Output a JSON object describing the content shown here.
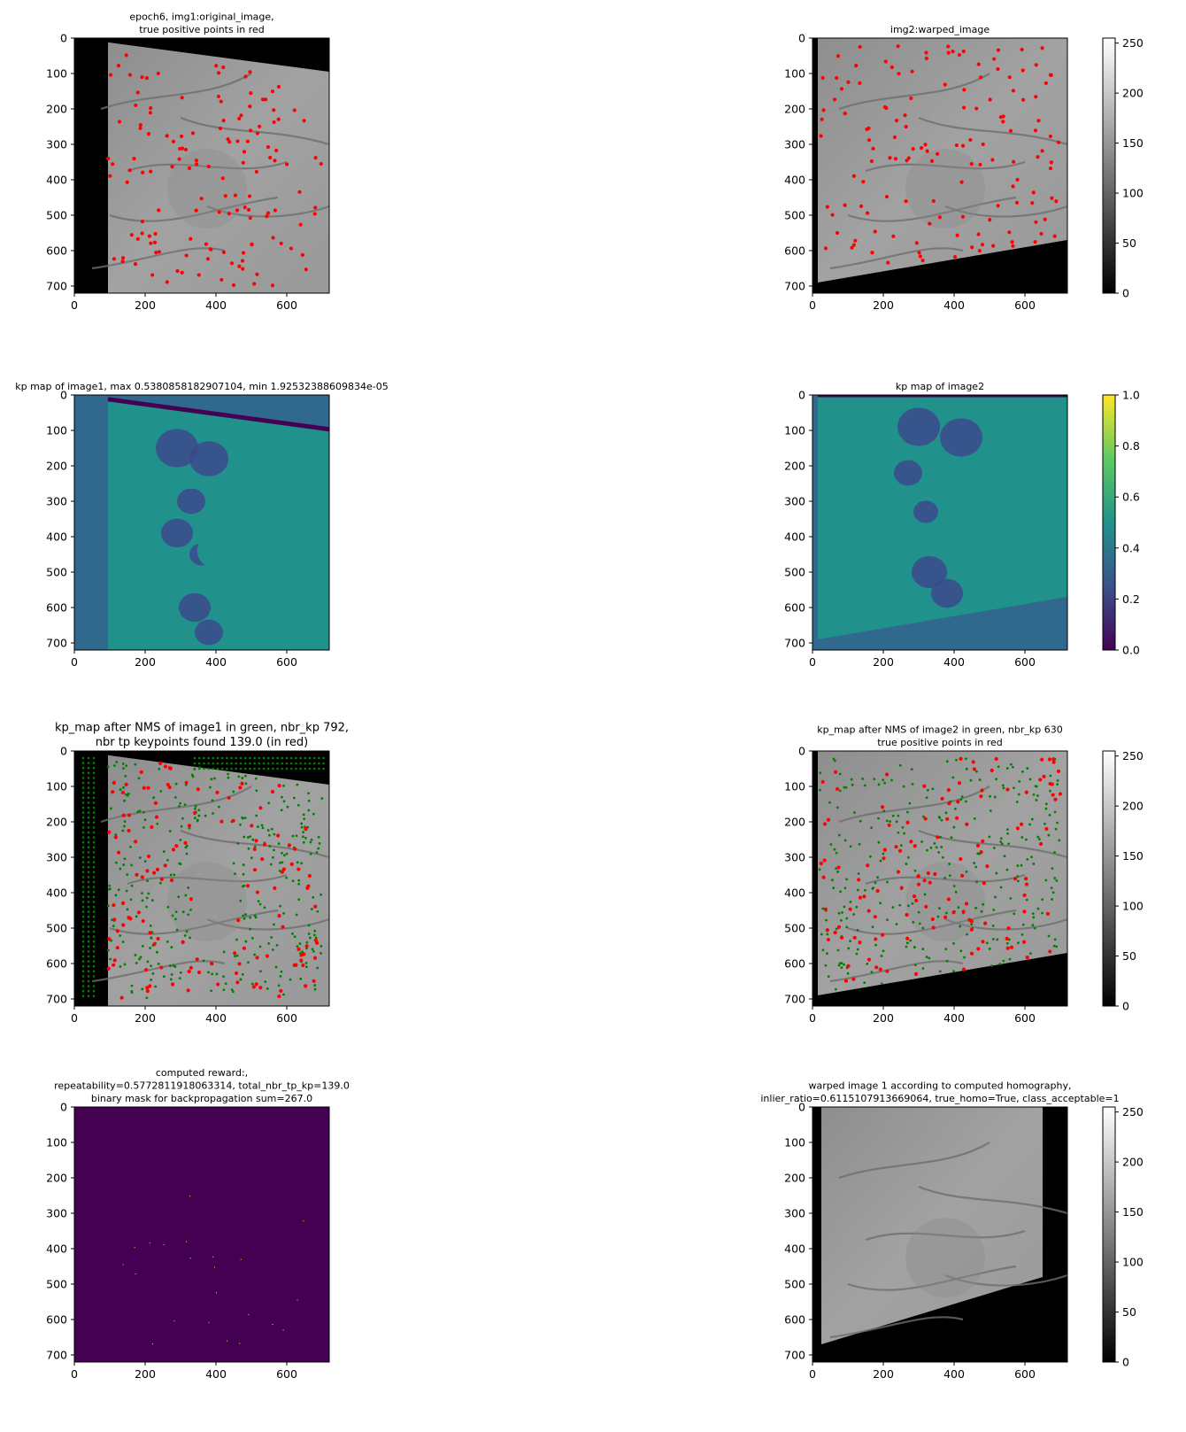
{
  "panels": [
    {
      "title_lines": [
        "epoch6, img1:original_image,",
        "true positive points in red"
      ],
      "kind": "gray",
      "geom": "left-trap",
      "colorbar": false
    },
    {
      "title_lines": [
        "img2:warped_image"
      ],
      "kind": "gray",
      "geom": "bottom-trap",
      "colorbar": true
    },
    {
      "title_lines": [
        "kp map of image1, max 0.5380858182907104, min 1.92532388609834e-05"
      ],
      "kind": "kpmap",
      "geom": "left-trap",
      "colorbar": false
    },
    {
      "title_lines": [
        "kp map of image2"
      ],
      "kind": "kpmap",
      "geom": "bottom-trap",
      "colorbar": true
    },
    {
      "title_lines": [
        "kp_map after NMS of image1 in green, nbr_kp 792,",
        "nbr tp keypoints found 139.0 (in red)"
      ],
      "kind": "gray-nms",
      "geom": "left-trap",
      "colorbar": false
    },
    {
      "title_lines": [
        "kp_map after NMS of image2 in green, nbr_kp 630",
        "true positive points in red"
      ],
      "kind": "gray-nms",
      "geom": "bottom-trap",
      "colorbar": true
    },
    {
      "title_lines": [
        "computed reward:,",
        "repeatability=0.5772811918063314, total_nbr_tp_kp=139.0",
        "binary mask for backpropagation sum=267.0"
      ],
      "kind": "mask",
      "geom": "full",
      "colorbar": false
    },
    {
      "title_lines": [
        "warped image 1 according to computed homography,",
        "inlier_ratio=0.6115107913669064, true_homo=True, class_acceptable=1"
      ],
      "kind": "gray",
      "geom": "warp-trap",
      "colorbar": true
    }
  ],
  "axes": {
    "x_ticks": [
      "0",
      "200",
      "400",
      "600"
    ],
    "y_ticks": [
      "0",
      "100",
      "200",
      "300",
      "400",
      "500",
      "600",
      "700"
    ]
  },
  "colorbars": {
    "gray": [
      "0",
      "50",
      "100",
      "150",
      "200",
      "250"
    ],
    "viridis": [
      "0.0",
      "0.2",
      "0.4",
      "0.6",
      "0.8",
      "1.0"
    ]
  },
  "colors": {
    "tp_point": "#ff0000",
    "nms_point": "#008000",
    "viridis_dark": "#440154",
    "viridis_blue": "#31688e",
    "viridis_teal": "#21918c",
    "viridis_yellow": "#fde725"
  }
}
